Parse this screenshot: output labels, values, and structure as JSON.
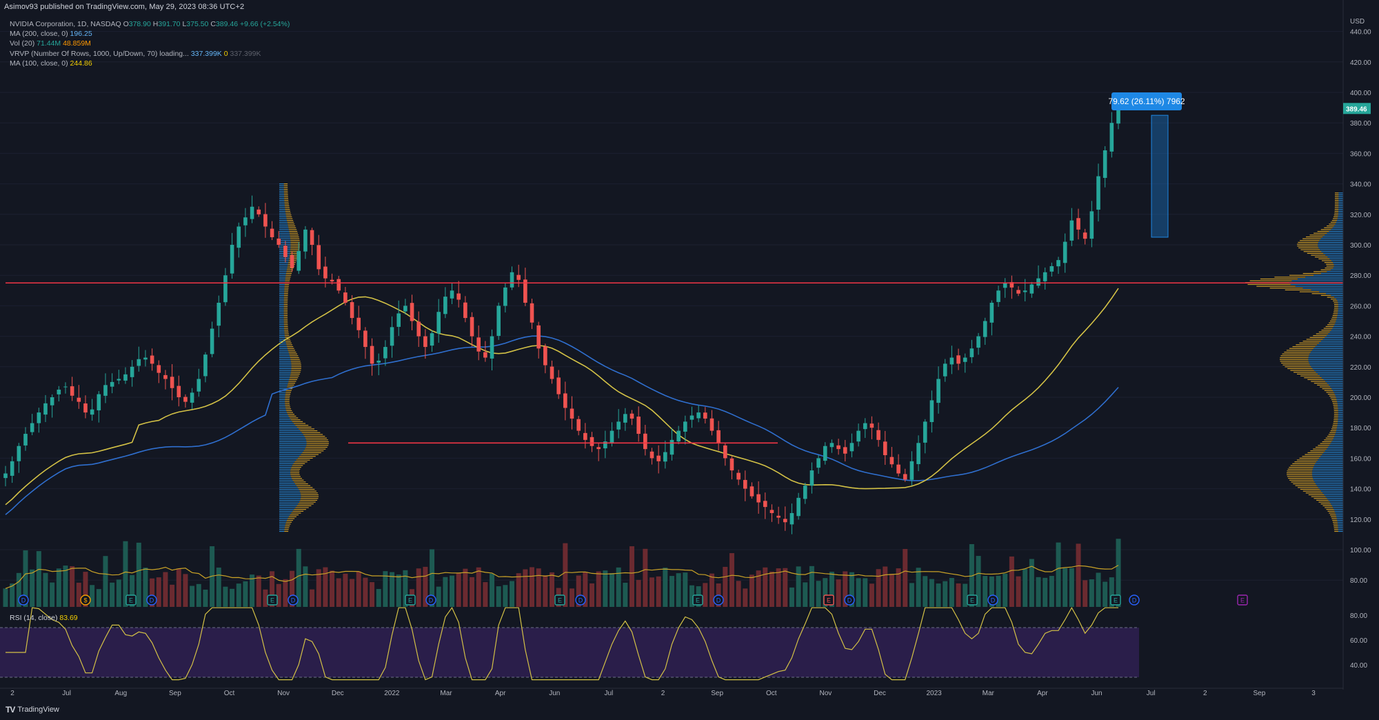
{
  "header": {
    "published": "Asimov93 published on TradingView.com, May 29, 2023 08:36 UTC+2"
  },
  "legend": {
    "symbol": "NVIDIA Corporation, 1D, NASDAQ",
    "ohlc": {
      "o_label": "O",
      "o": "378.90",
      "h_label": "H",
      "h": "391.70",
      "l_label": "L",
      "l": "375.50",
      "c_label": "C",
      "c": "389.46",
      "change": "+9.66 (+2.54%)"
    },
    "ma200": {
      "label": "MA (200, close, 0)",
      "value": "196.25"
    },
    "vol": {
      "label": "Vol (20)",
      "value1": "71.44M",
      "value2": "48.859M"
    },
    "vrvp": {
      "label": "VRVP (Number Of Rows, 1000, Up/Down, 70) loading...",
      "v1": "337.399K",
      "v2": "0",
      "v3": "337.399K"
    },
    "ma100": {
      "label": "MA (100, close, 0)",
      "value": "244.86"
    }
  },
  "rsi": {
    "label": "RSI (14, close)",
    "value": "83.69"
  },
  "measure": {
    "label": "79.62 (26.11%) 7962"
  },
  "last_price": {
    "label": "389.46"
  },
  "price_axis": {
    "unit": "USD",
    "ticks": [
      "440.00",
      "420.00",
      "400.00",
      "380.00",
      "360.00",
      "340.00",
      "320.00",
      "300.00",
      "280.00",
      "260.00",
      "240.00",
      "220.00",
      "200.00",
      "180.00",
      "160.00",
      "140.00",
      "120.00",
      "100.00",
      "80.00"
    ]
  },
  "rsi_axis": {
    "ticks": [
      "80.00",
      "60.00",
      "40.00"
    ]
  },
  "time_axis": {
    "labels": [
      "2",
      "Jul",
      "Aug",
      "Sep",
      "Oct",
      "Nov",
      "Dec",
      "2022",
      "Mar",
      "Apr",
      "Jun",
      "Jul",
      "2",
      "Sep",
      "Oct",
      "Nov",
      "Dec",
      "2023",
      "Mar",
      "Apr",
      "Jun",
      "Jul",
      "2",
      "Sep",
      "3"
    ]
  },
  "events": {
    "markers": [
      {
        "label": "D",
        "color": "#2962ff"
      },
      {
        "label": "$",
        "color": "#f59f00"
      },
      {
        "label": "E",
        "color": "#26a69a"
      },
      {
        "label": "D",
        "color": "#2962ff"
      },
      {
        "label": "E",
        "color": "#26a69a"
      },
      {
        "label": "D",
        "color": "#2962ff"
      },
      {
        "label": "E",
        "color": "#26a69a"
      },
      {
        "label": "D",
        "color": "#2962ff"
      },
      {
        "label": "E",
        "color": "#26a69a"
      },
      {
        "label": "D",
        "color": "#2962ff"
      },
      {
        "label": "E",
        "color": "#26a69a"
      },
      {
        "label": "D",
        "color": "#2962ff"
      },
      {
        "label": "E",
        "color": "#ef5350"
      },
      {
        "label": "D",
        "color": "#2962ff"
      },
      {
        "label": "E",
        "color": "#26a69a"
      },
      {
        "label": "D",
        "color": "#2962ff"
      },
      {
        "label": "E",
        "color": "#26a69a"
      },
      {
        "label": "D",
        "color": "#2962ff"
      },
      {
        "label": "E",
        "color": "#9c27b0"
      }
    ]
  },
  "footer": {
    "brand": "TradingView"
  },
  "colors": {
    "background": "#131722",
    "up": "#26a69a",
    "down": "#ef5350",
    "ma100": "#d4c246",
    "ma200": "#2f6fcf",
    "hline": "#f23645",
    "vrvp_up": "#2a8fe0",
    "vrvp_down": "#f0b429",
    "rsi_fill": "#2a1e4a",
    "rsi_line": "#d4c246",
    "measure": "#1e88e5"
  },
  "chart_data": {
    "type": "candlestick",
    "title": "NVIDIA Corporation, 1D, NASDAQ",
    "ylim": [
      70,
      445
    ],
    "horizontal_levels": [
      275,
      170
    ],
    "closes": [
      150,
      158,
      168,
      176,
      183,
      190,
      196,
      200,
      205,
      207,
      201,
      197,
      190,
      192,
      202,
      208,
      210,
      212,
      215,
      220,
      225,
      226,
      222,
      216,
      212,
      206,
      200,
      197,
      203,
      212,
      228,
      245,
      262,
      280,
      300,
      312,
      318,
      325,
      320,
      312,
      305,
      300,
      292,
      285,
      296,
      310,
      300,
      284,
      278,
      276,
      270,
      262,
      252,
      244,
      233,
      222,
      224,
      233,
      246,
      255,
      260,
      250,
      240,
      233,
      242,
      256,
      266,
      270,
      264,
      252,
      240,
      230,
      226,
      240,
      260,
      272,
      282,
      277,
      262,
      249,
      232,
      221,
      212,
      202,
      193,
      186,
      178,
      172,
      168,
      166,
      171,
      178,
      184,
      189,
      186,
      176,
      166,
      160,
      158,
      164,
      172,
      178,
      184,
      188,
      190,
      186,
      178,
      170,
      160,
      152,
      146,
      140,
      135,
      131,
      128,
      124,
      121,
      118,
      124,
      134,
      142,
      152,
      160,
      168,
      170,
      166,
      163,
      170,
      178,
      183,
      180,
      172,
      162,
      156,
      150,
      146,
      158,
      170,
      184,
      198,
      212,
      222,
      226,
      222,
      226,
      232,
      240,
      250,
      262,
      270,
      275,
      272,
      268,
      270,
      274,
      278,
      282,
      286,
      290,
      302,
      316,
      310,
      304,
      322,
      345,
      362,
      380,
      389.46
    ]
  }
}
